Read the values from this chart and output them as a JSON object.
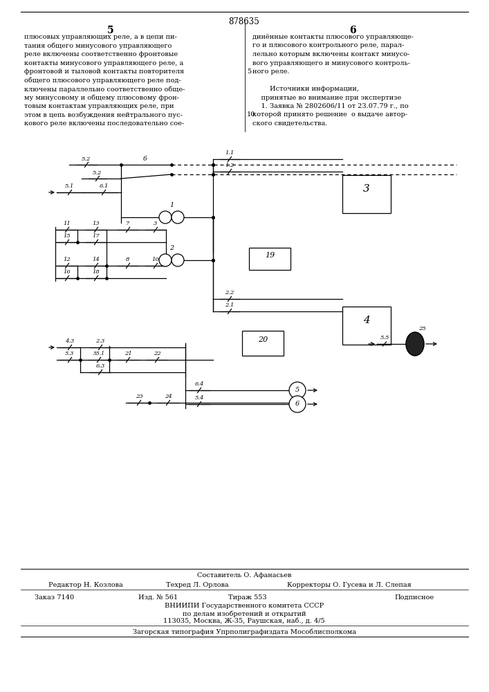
{
  "page_color": "#ffffff",
  "patent_number": "878635",
  "col_left_header": "5",
  "col_right_header": "6",
  "footer_compiler": "Составитель О. Афанасьев",
  "footer_editor": "Редактор Н. Козлова",
  "footer_techred": "Техред Л. Орлова",
  "footer_correctors": "Корректоры О. Гусева и Л. Слепая",
  "footer_order": "Заказ 7140",
  "footer_izd": "Изд. № 561",
  "footer_tirazh": "Тираж 553",
  "footer_podpisnoye": "Подписное",
  "footer_vniipи": "ВНИИПИ Государственного комитета СССР",
  "footer_po_delam": "по делам изобретений и открытий",
  "footer_address": "113035, Москва, Ж-35, Раушская, наб., д. 4/5",
  "footer_zagorskaya": "Загорская типография Упрполиграфиздата Мособлисполкома"
}
